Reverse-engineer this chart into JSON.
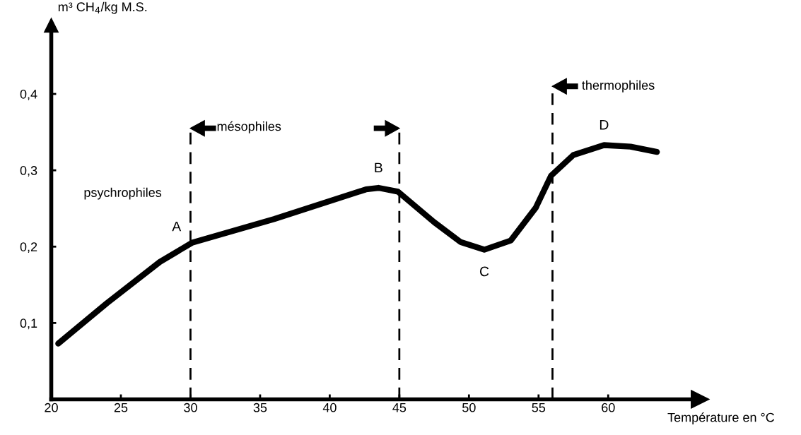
{
  "chart_data": {
    "type": "line",
    "ylabel": "m³ CH$_{4}$/kg M.S.",
    "xlabel": "Température en °C",
    "x": [
      20.5,
      24.0,
      27.8,
      30.1,
      36.0,
      42.6,
      43.5,
      44.9,
      47.5,
      49.4,
      51.1,
      53.0,
      54.8,
      55.9,
      57.5,
      59.7,
      61.6,
      63.5
    ],
    "series": [
      {
        "color": "#000000",
        "values": [
          0.073,
          0.126,
          0.18,
          0.205,
          0.236,
          0.275,
          0.277,
          0.272,
          0.232,
          0.206,
          0.196,
          0.208,
          0.251,
          0.293,
          0.32,
          0.333,
          0.331,
          0.324
        ]
      }
    ],
    "xlim": [
      20,
      66.6
    ],
    "ylim": [
      0,
      0.49
    ],
    "xticks": [
      20,
      25,
      30,
      35,
      40,
      45,
      50,
      55,
      60
    ],
    "yticks": [
      {
        "value": 0.1,
        "label": "0,1"
      },
      {
        "value": 0.2,
        "label": "0,2"
      },
      {
        "value": 0.3,
        "label": "0,3"
      },
      {
        "value": 0.4,
        "label": "0,4"
      }
    ],
    "ref_lines": [
      {
        "axis": "x",
        "value": 30,
        "line_style": "dashed"
      },
      {
        "axis": "x",
        "value": 45,
        "line_style": "dashed"
      },
      {
        "axis": "x",
        "value": 56,
        "label": "thermophiles",
        "line_style": "dashed"
      }
    ],
    "annotations": [
      "psychrophiles",
      "mésophiles",
      {
        "text": "A",
        "x": 29.0,
        "y": 0.2
      },
      {
        "text": "B",
        "x": 43.5,
        "y": 0.277
      },
      {
        "text": "C",
        "x": 51.1,
        "y": 0.196
      },
      {
        "text": "D",
        "x": 59.7,
        "y": 0.333
      }
    ],
    "grid": false,
    "legend": false,
    "marker": "none",
    "line_style": "solid"
  }
}
